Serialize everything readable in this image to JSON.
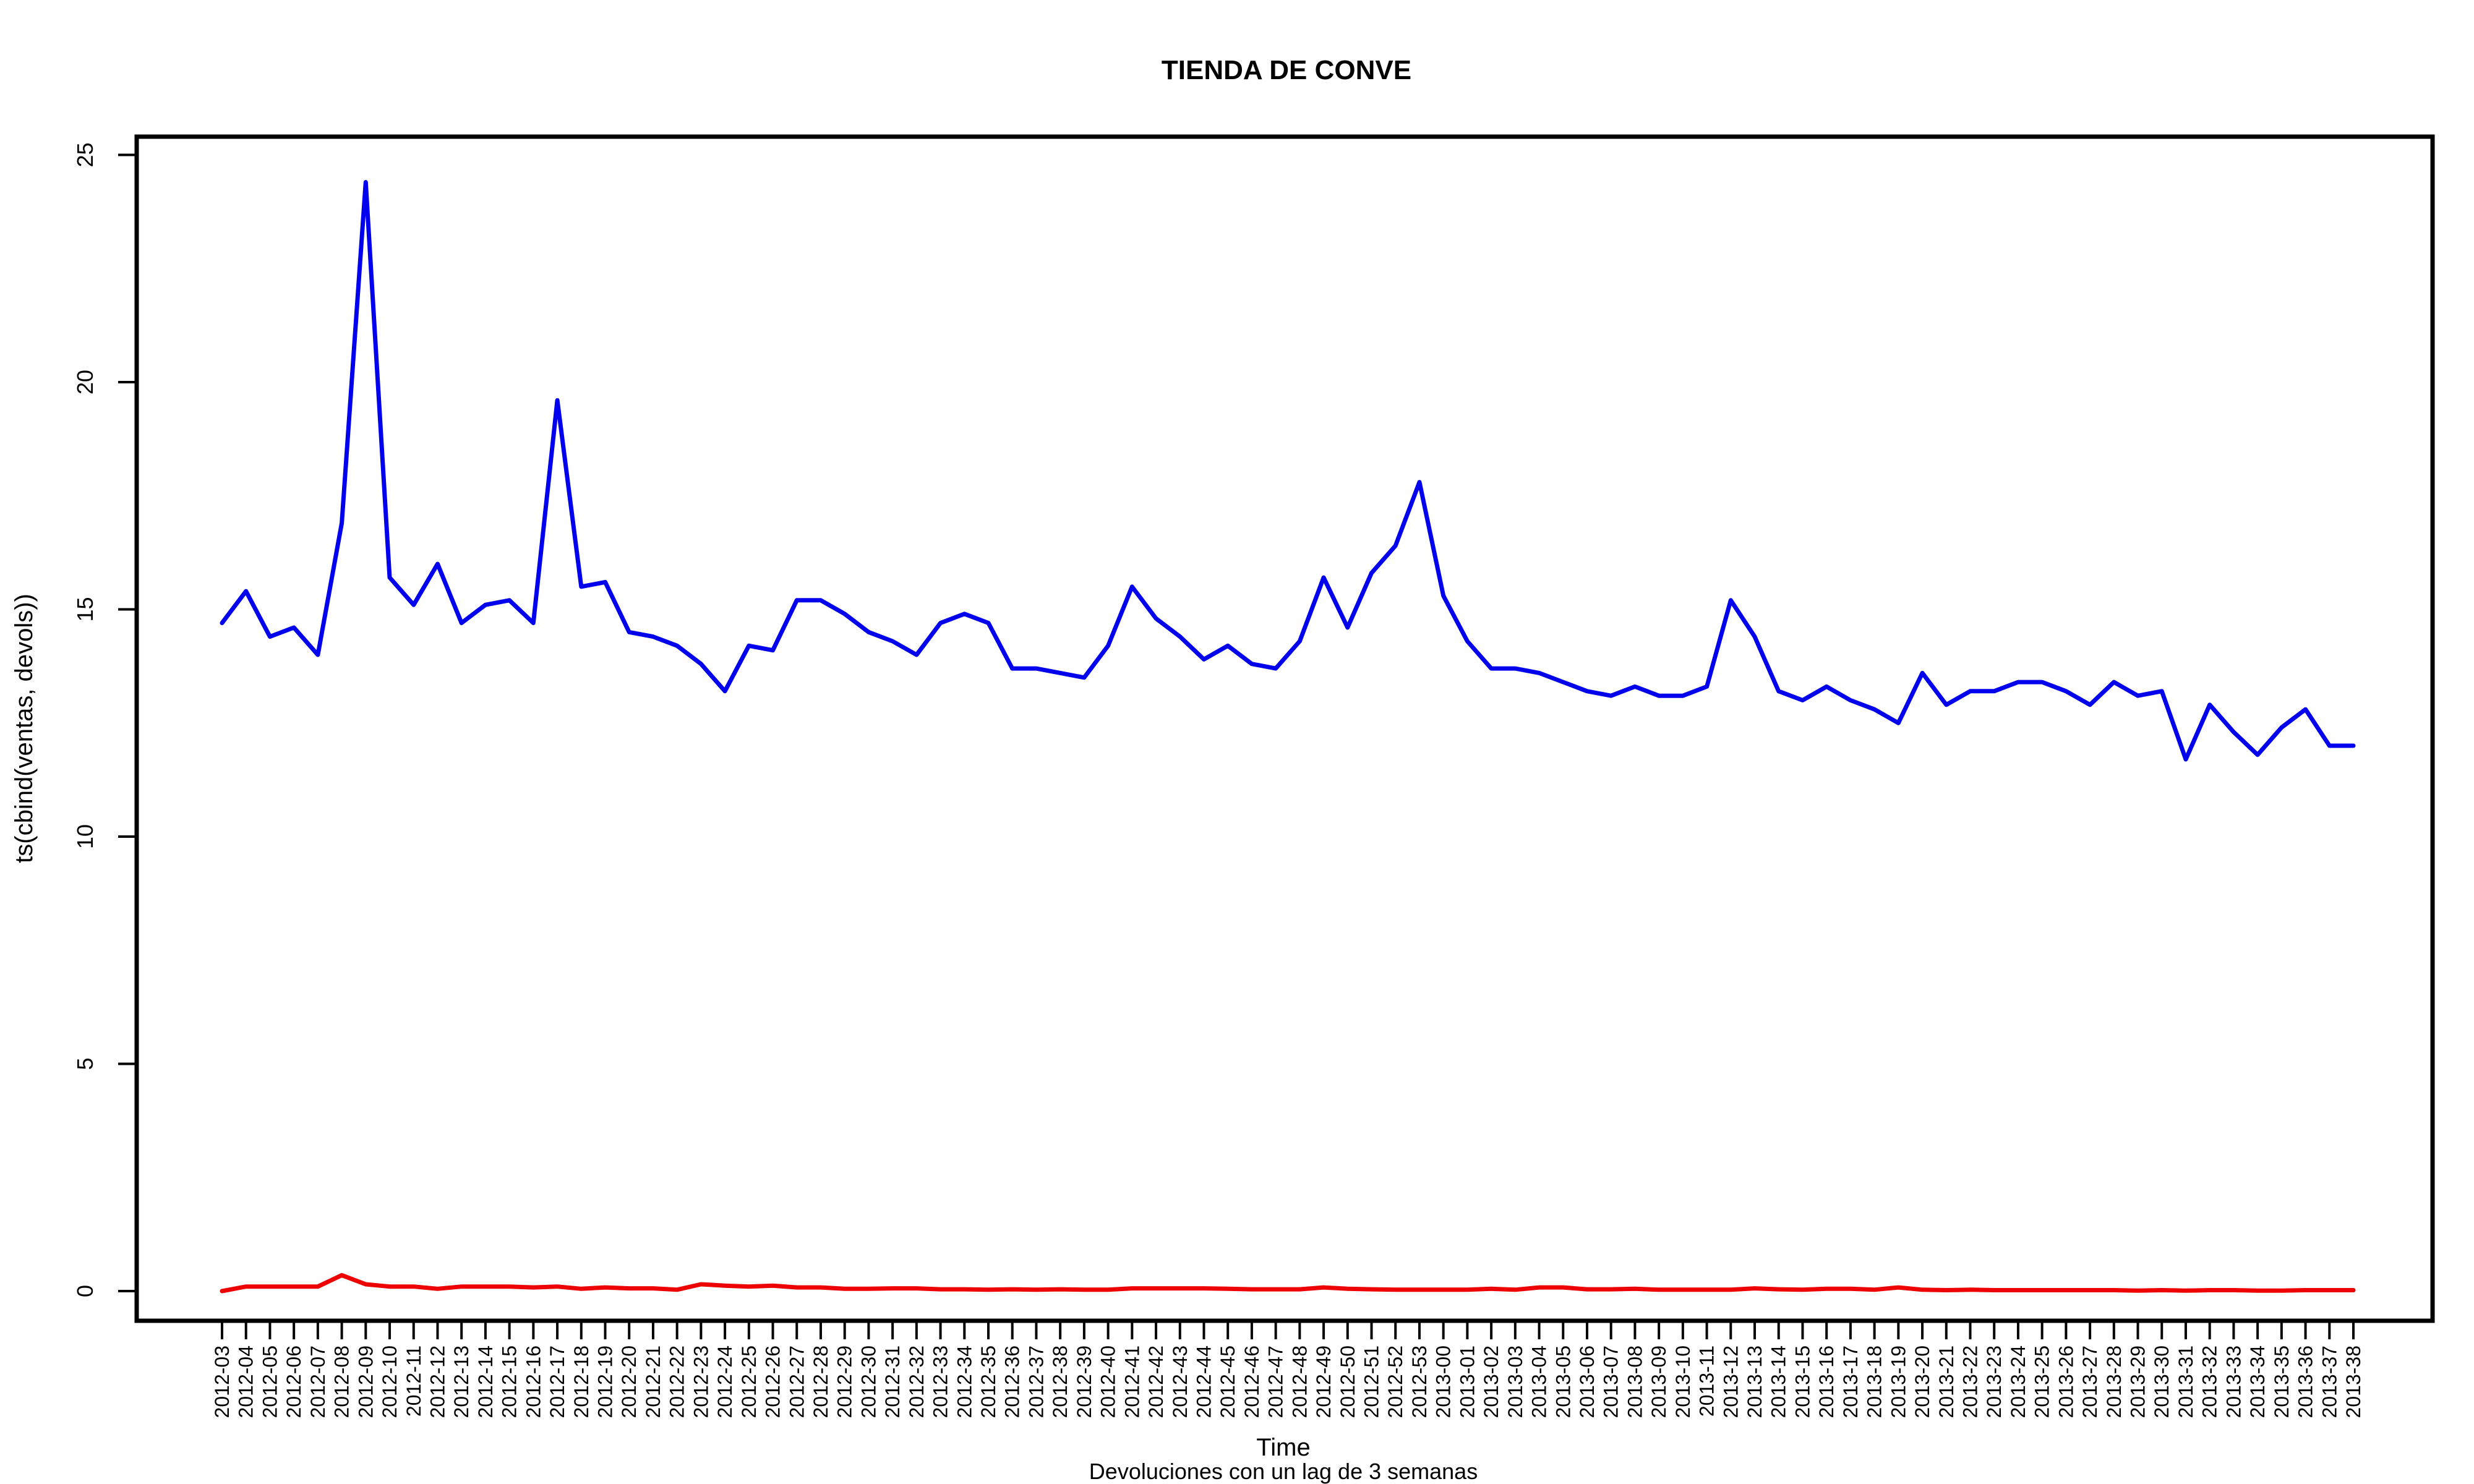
{
  "chart_data": {
    "type": "line",
    "title": "TIENDA DE CONVE",
    "xlabel": "Time",
    "ylabel": "ts(cbind(ventas, devols))",
    "subtitle": "Devoluciones con un lag de 3 semanas",
    "ylim": [
      -1,
      25
    ],
    "yticks": [
      0,
      5,
      10,
      15,
      20,
      25
    ],
    "grid": false,
    "legend": "none",
    "x": [
      "2012-03",
      "2012-04",
      "2012-05",
      "2012-06",
      "2012-07",
      "2012-08",
      "2012-09",
      "2012-10",
      "2012-11",
      "2012-12",
      "2012-13",
      "2012-14",
      "2012-15",
      "2012-16",
      "2012-17",
      "2012-18",
      "2012-19",
      "2012-20",
      "2012-21",
      "2012-22",
      "2012-23",
      "2012-24",
      "2012-25",
      "2012-26",
      "2012-27",
      "2012-28",
      "2012-29",
      "2012-30",
      "2012-31",
      "2012-32",
      "2012-33",
      "2012-34",
      "2012-35",
      "2012-36",
      "2012-37",
      "2012-38",
      "2012-39",
      "2012-40",
      "2012-41",
      "2012-42",
      "2012-43",
      "2012-44",
      "2012-45",
      "2012-46",
      "2012-47",
      "2012-48",
      "2012-49",
      "2012-50",
      "2012-51",
      "2012-52",
      "2012-53",
      "2013-00",
      "2013-01",
      "2013-02",
      "2013-03",
      "2013-04",
      "2013-05",
      "2013-06",
      "2013-07",
      "2013-08",
      "2013-09",
      "2013-10",
      "2013-11",
      "2013-12",
      "2013-13",
      "2013-14",
      "2013-15",
      "2013-16",
      "2013-17",
      "2013-18",
      "2013-19",
      "2013-20",
      "2013-21",
      "2013-22",
      "2013-23",
      "2013-24",
      "2013-25",
      "2013-26",
      "2013-27",
      "2013-28",
      "2013-29",
      "2013-30",
      "2013-31",
      "2013-32",
      "2013-33",
      "2013-34",
      "2013-35",
      "2013-36",
      "2013-37",
      "2013-38"
    ],
    "series": [
      {
        "color": "#0000ee",
        "values": [
          14.7,
          15.4,
          14.4,
          14.6,
          14.0,
          16.9,
          24.4,
          15.7,
          15.1,
          16.0,
          14.7,
          15.1,
          15.2,
          14.7,
          19.6,
          15.5,
          15.6,
          14.5,
          14.4,
          14.2,
          13.8,
          13.2,
          14.2,
          14.1,
          15.2,
          15.2,
          14.9,
          14.5,
          14.3,
          14.0,
          14.7,
          14.9,
          14.7,
          13.7,
          13.7,
          13.6,
          13.5,
          14.2,
          15.5,
          14.8,
          14.4,
          13.9,
          14.2,
          13.8,
          13.7,
          14.3,
          15.7,
          14.6,
          15.8,
          16.4,
          17.8,
          15.3,
          14.3,
          13.7,
          13.7,
          13.6,
          13.4,
          13.2,
          13.1,
          13.3,
          13.1,
          13.1,
          13.3,
          15.2,
          14.4,
          13.2,
          13.0,
          13.3,
          13.0,
          12.8,
          12.5,
          13.6,
          12.9,
          13.2,
          13.2,
          13.4,
          13.4,
          13.2,
          12.9,
          13.4,
          13.1,
          13.2,
          11.7,
          12.9,
          12.3,
          11.8,
          12.4,
          12.8,
          12.0,
          12.0
        ]
      },
      {
        "color": "#ee0000",
        "values": [
          0.0,
          0.1,
          0.1,
          0.1,
          0.1,
          0.35,
          0.15,
          0.1,
          0.1,
          0.05,
          0.1,
          0.1,
          0.1,
          0.08,
          0.1,
          0.05,
          0.08,
          0.06,
          0.06,
          0.03,
          0.15,
          0.12,
          0.1,
          0.12,
          0.08,
          0.08,
          0.05,
          0.05,
          0.06,
          0.06,
          0.04,
          0.04,
          0.03,
          0.04,
          0.03,
          0.04,
          0.03,
          0.03,
          0.06,
          0.06,
          0.06,
          0.06,
          0.05,
          0.04,
          0.04,
          0.04,
          0.08,
          0.05,
          0.04,
          0.03,
          0.03,
          0.03,
          0.03,
          0.05,
          0.03,
          0.08,
          0.08,
          0.04,
          0.04,
          0.05,
          0.03,
          0.03,
          0.03,
          0.03,
          0.06,
          0.04,
          0.03,
          0.05,
          0.05,
          0.03,
          0.08,
          0.03,
          0.02,
          0.03,
          0.02,
          0.02,
          0.02,
          0.02,
          0.02,
          0.02,
          0.01,
          0.02,
          0.01,
          0.02,
          0.02,
          0.01,
          0.01,
          0.02,
          0.02,
          0.02
        ]
      }
    ]
  }
}
